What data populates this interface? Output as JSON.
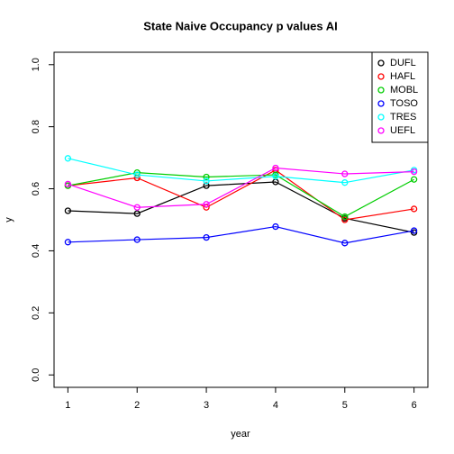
{
  "chart_data": {
    "type": "line",
    "title": "State Naive Occupancy p values AI",
    "x_label": "year",
    "y_label": "y",
    "x": [
      1,
      2,
      3,
      4,
      5,
      6
    ],
    "series": [
      {
        "name": "DUFL",
        "color": "#000000",
        "values": [
          0.529,
          0.52,
          0.61,
          0.622,
          0.505,
          0.459
        ]
      },
      {
        "name": "HAFL",
        "color": "#ff0000",
        "values": [
          0.61,
          0.635,
          0.54,
          0.66,
          0.5,
          0.535
        ]
      },
      {
        "name": "MOBL",
        "color": "#00cd00",
        "values": [
          0.61,
          0.652,
          0.638,
          0.645,
          0.51,
          0.63
        ]
      },
      {
        "name": "TOSO",
        "color": "#0000ff",
        "values": [
          0.428,
          0.436,
          0.443,
          0.478,
          0.425,
          0.465
        ]
      },
      {
        "name": "TRES",
        "color": "#00ffff",
        "values": [
          0.698,
          0.645,
          0.625,
          0.64,
          0.62,
          0.66
        ]
      },
      {
        "name": "UEFL",
        "color": "#ff00ff",
        "values": [
          0.615,
          0.54,
          0.55,
          0.667,
          0.648,
          0.655
        ]
      }
    ],
    "xlim": [
      0.8,
      6.2
    ],
    "xticks": [
      1,
      2,
      3,
      4,
      5,
      6
    ],
    "ylim": [
      -0.04,
      1.04
    ],
    "yticks": [
      {
        "value": 0,
        "label": "0.0"
      },
      0.2,
      0.4,
      0.6,
      0.8,
      {
        "value": 1,
        "label": "1.0"
      }
    ],
    "grid": false,
    "legend": "topright"
  }
}
